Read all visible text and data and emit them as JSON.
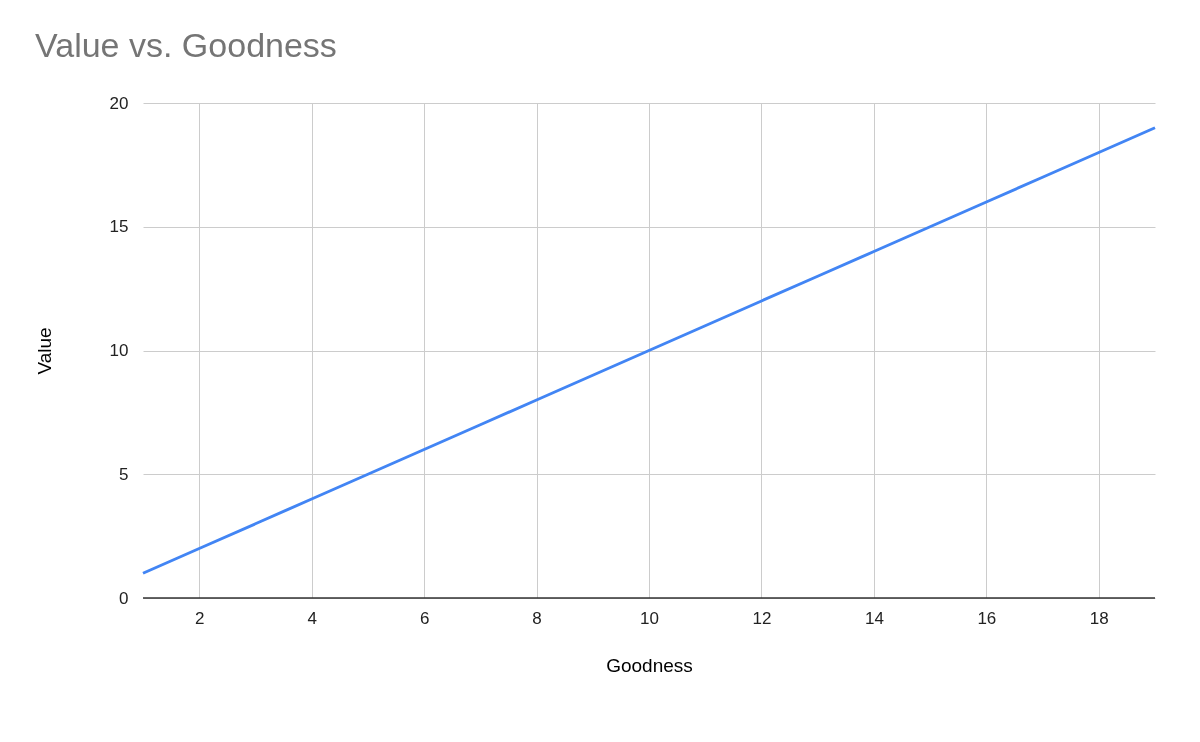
{
  "chart_data": {
    "type": "line",
    "title": "Value vs. Goodness",
    "xlabel": "Goodness",
    "ylabel": "Value",
    "x": [
      1,
      2,
      3,
      4,
      5,
      6,
      7,
      8,
      9,
      10,
      11,
      12,
      13,
      14,
      15,
      16,
      17,
      18,
      19
    ],
    "series": [
      {
        "color": "#4285f4",
        "values": [
          1,
          2,
          3,
          4,
          5,
          6,
          7,
          8,
          9,
          10,
          11,
          12,
          13,
          14,
          15,
          16,
          17,
          18,
          19
        ]
      }
    ],
    "xlim": [
      1,
      19
    ],
    "xticks": [
      2,
      4,
      6,
      8,
      10,
      12,
      14,
      16,
      18
    ],
    "ylim": [
      0,
      20
    ],
    "yticks": [
      0,
      5,
      10,
      15,
      20
    ],
    "grid": true,
    "marker": "none",
    "line_style": "solid"
  }
}
